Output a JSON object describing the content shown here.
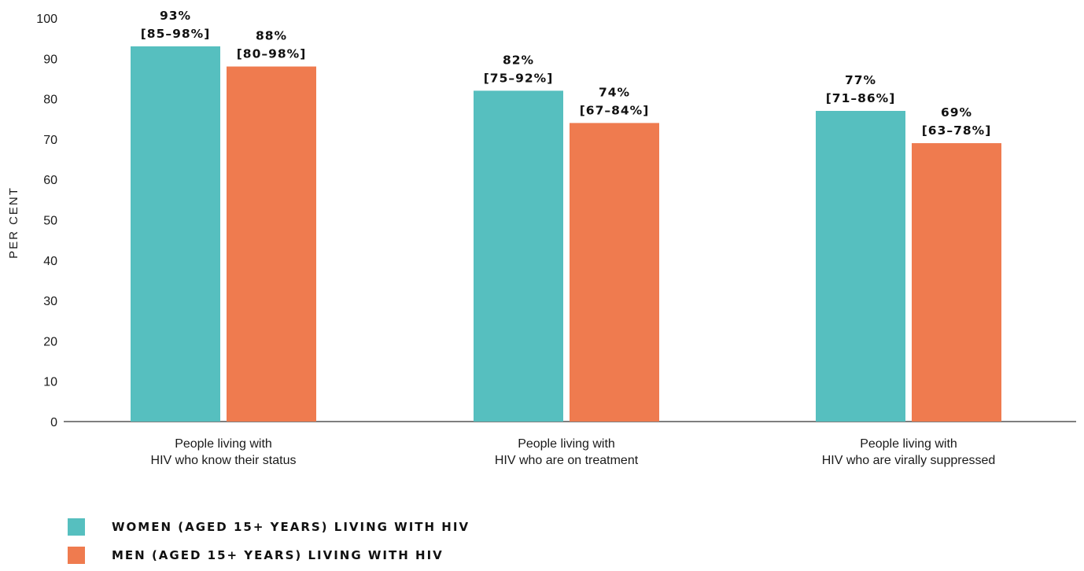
{
  "chart_data": {
    "type": "bar",
    "ylabel": "PER CENT",
    "ylim": [
      0,
      100
    ],
    "yticks": [
      "0",
      "10",
      "20",
      "30",
      "40",
      "50",
      "60",
      "70",
      "80",
      "90",
      "100"
    ],
    "grid": false,
    "legend_position": "bottom-left",
    "categories": [
      [
        "People living with",
        "HIV who know their status"
      ],
      [
        "People living with",
        "HIV who are on treatment"
      ],
      [
        "People living with",
        "HIV who are virally suppressed"
      ]
    ],
    "series": [
      {
        "name": "WOMEN (AGED 15+ YEARS) LIVING WITH HIV",
        "color": "#56bfbf",
        "values": [
          93,
          82,
          77
        ],
        "labels": [
          [
            "93%",
            "[85–98%]"
          ],
          [
            "82%",
            "[75–92%]"
          ],
          [
            "77%",
            "[71–86%]"
          ]
        ]
      },
      {
        "name": "MEN (AGED 15+ YEARS) LIVING WITH HIV",
        "color": "#ef7b4f",
        "values": [
          88,
          74,
          69
        ],
        "labels": [
          [
            "88%",
            "[80–98%]"
          ],
          [
            "74%",
            "[67–84%]"
          ],
          [
            "69%",
            "[63–78%]"
          ]
        ]
      }
    ]
  }
}
